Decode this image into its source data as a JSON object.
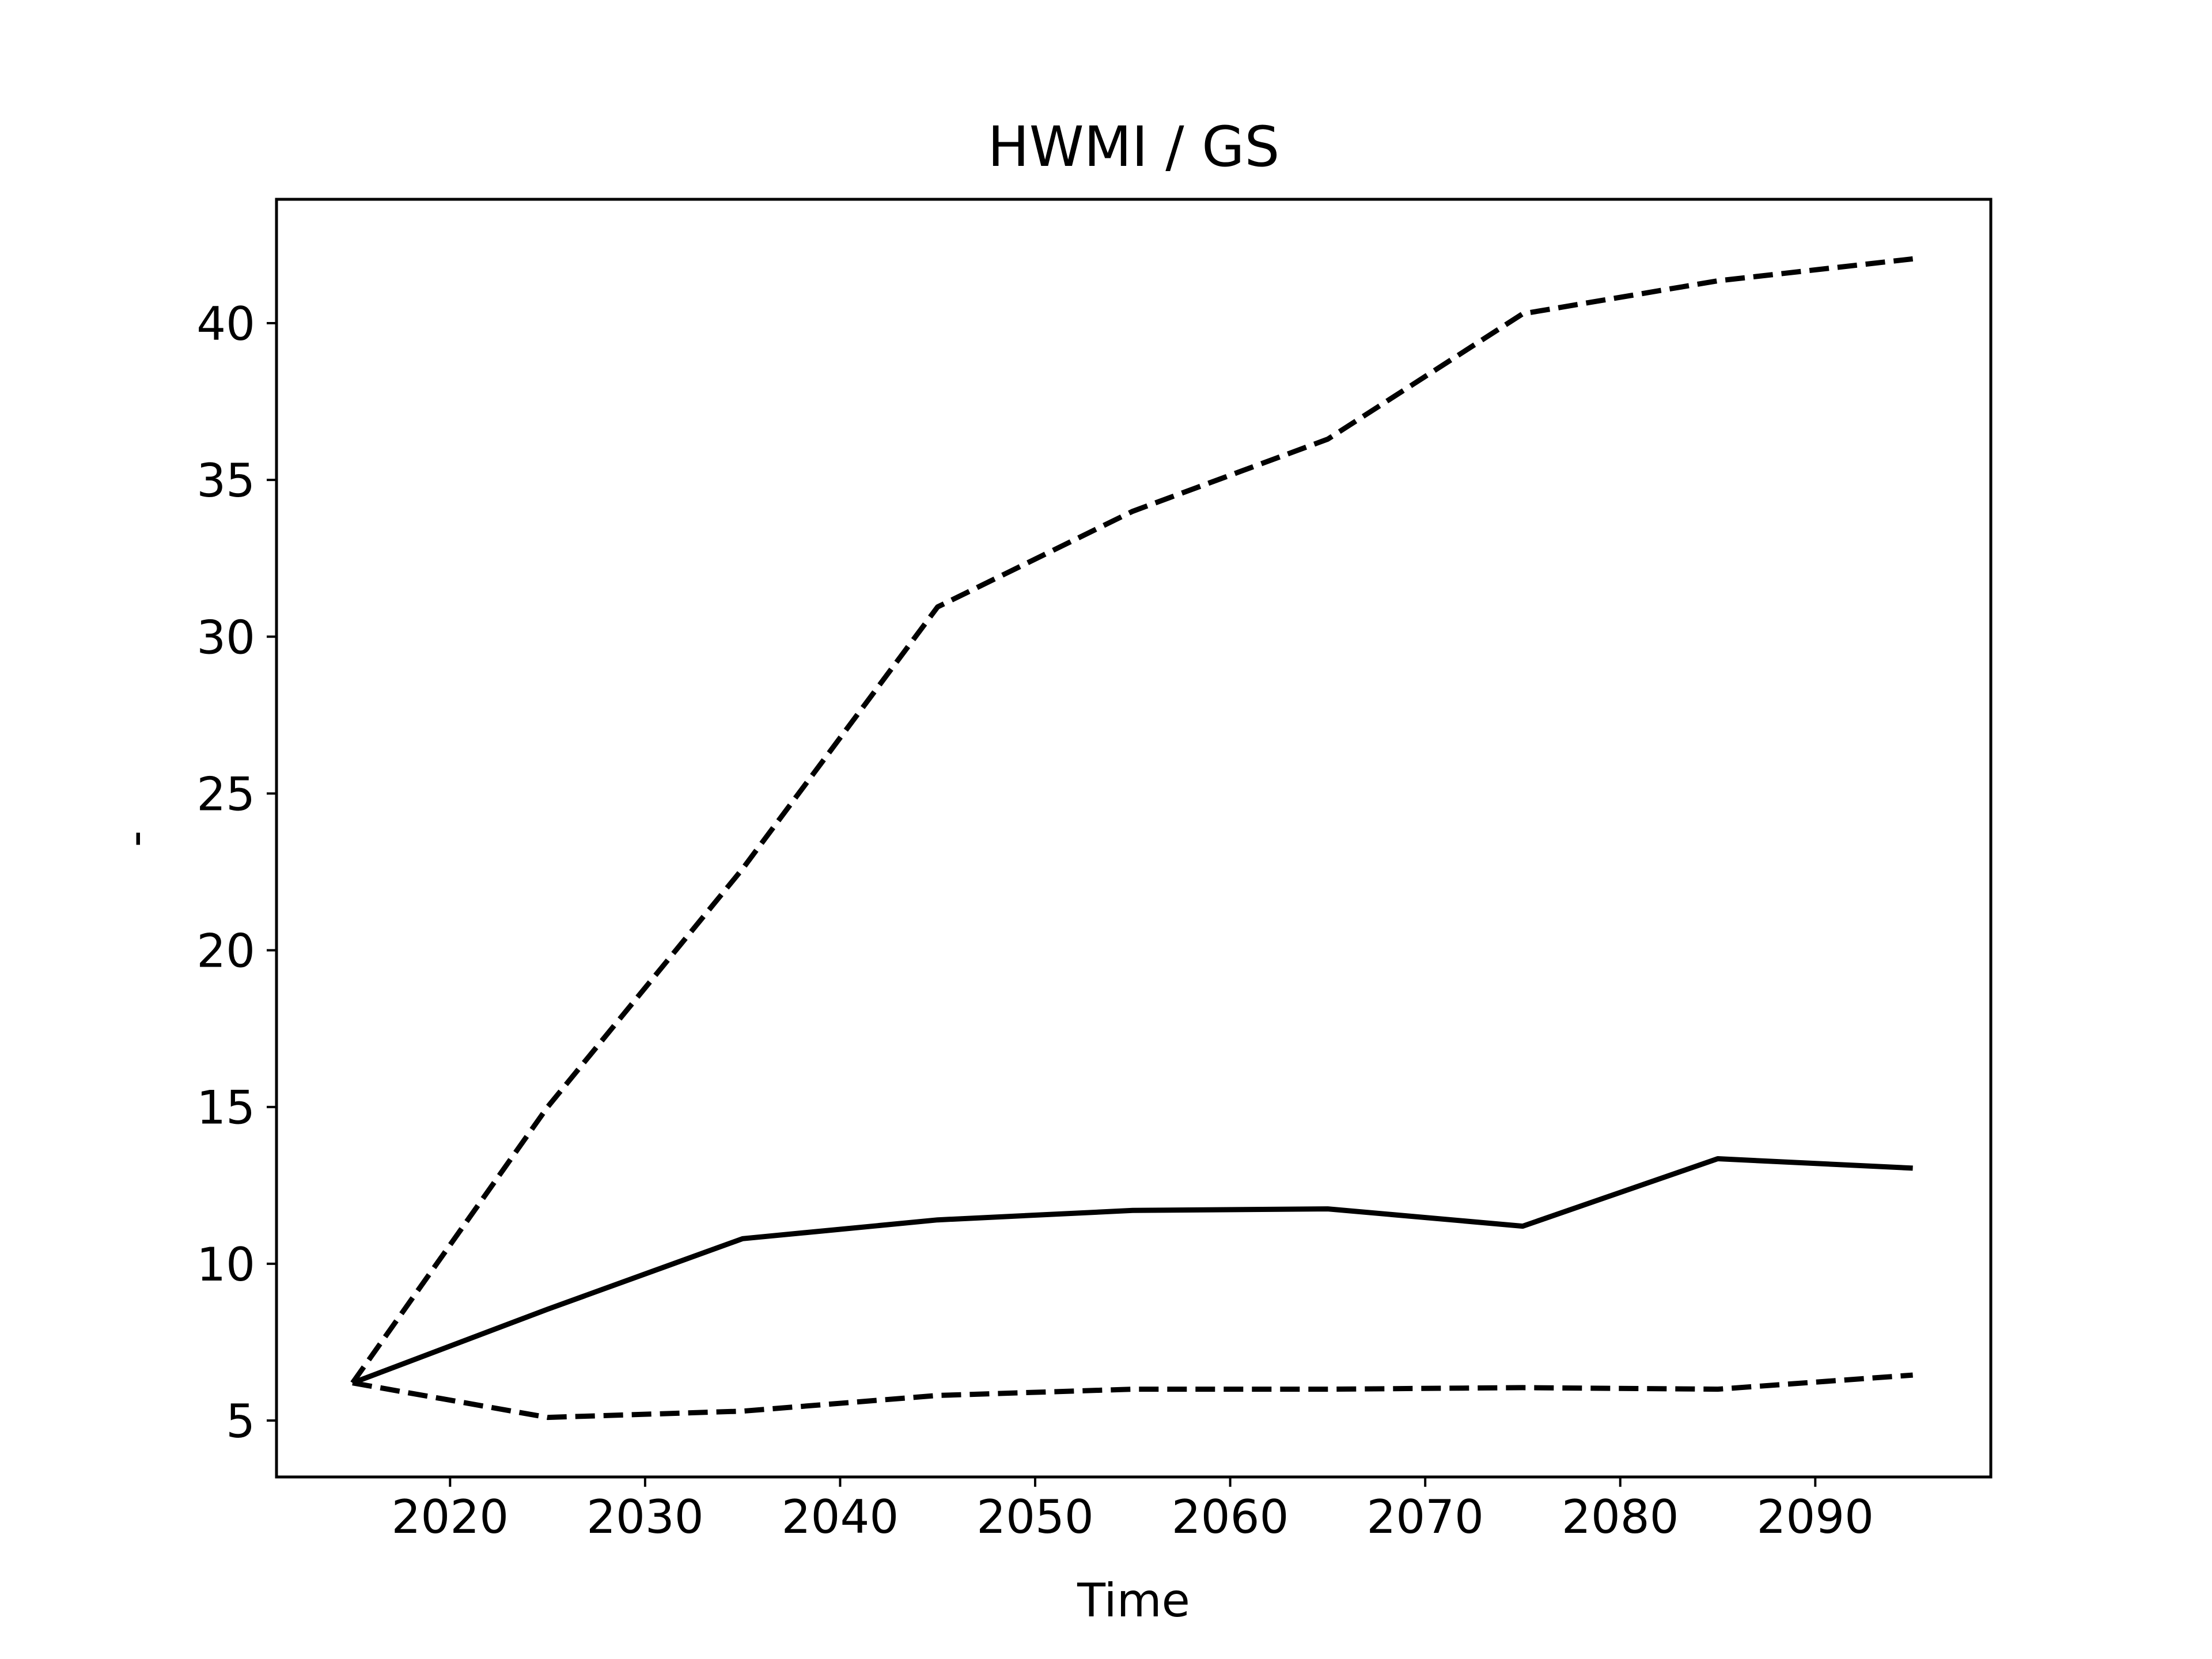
{
  "chart_data": {
    "type": "line",
    "title": "HWMI / GS",
    "xlabel": "Time",
    "ylabel": "-",
    "xlim": [
      2011.1,
      2099.0
    ],
    "ylim": [
      3.2,
      43.95
    ],
    "xticks": [
      2020,
      2030,
      2040,
      2050,
      2060,
      2070,
      2080,
      2090
    ],
    "yticks": [
      5,
      10,
      15,
      20,
      25,
      30,
      35,
      40
    ],
    "grid": false,
    "legend": "none",
    "x": [
      2015,
      2025,
      2035,
      2045,
      2055,
      2065,
      2075,
      2085,
      2095
    ],
    "series": [
      {
        "style": "solid",
        "color": "#000000",
        "values": [
          6.2,
          8.55,
          10.8,
          11.4,
          11.7,
          11.75,
          11.2,
          13.35,
          13.05
        ]
      },
      {
        "style": "dashed",
        "color": "#000000",
        "values": [
          6.2,
          15.0,
          22.6,
          30.95,
          34.0,
          36.3,
          40.3,
          41.35,
          42.05
        ]
      },
      {
        "style": "dashed",
        "color": "#000000",
        "values": [
          6.2,
          5.1,
          5.3,
          5.8,
          6.0,
          6.0,
          6.05,
          6.0,
          6.45
        ]
      }
    ]
  }
}
